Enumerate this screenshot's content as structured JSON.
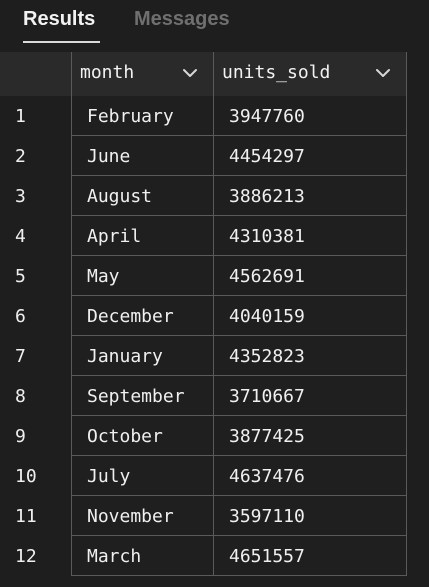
{
  "tabs": {
    "items": [
      {
        "label": "Results",
        "active": true
      },
      {
        "label": "Messages",
        "active": false
      }
    ]
  },
  "grid": {
    "columns": [
      {
        "label": "month"
      },
      {
        "label": "units_sold"
      }
    ],
    "rows": [
      {
        "row_number": "1",
        "month": "February",
        "units_sold": "3947760"
      },
      {
        "row_number": "2",
        "month": "June",
        "units_sold": "4454297"
      },
      {
        "row_number": "3",
        "month": "August",
        "units_sold": "3886213"
      },
      {
        "row_number": "4",
        "month": "April",
        "units_sold": "4310381"
      },
      {
        "row_number": "5",
        "month": "May",
        "units_sold": "4562691"
      },
      {
        "row_number": "6",
        "month": "December",
        "units_sold": "4040159"
      },
      {
        "row_number": "7",
        "month": "January",
        "units_sold": "4352823"
      },
      {
        "row_number": "8",
        "month": "September",
        "units_sold": "3710667"
      },
      {
        "row_number": "9",
        "month": "October",
        "units_sold": "3877425"
      },
      {
        "row_number": "10",
        "month": "July",
        "units_sold": "4637476"
      },
      {
        "row_number": "11",
        "month": "November",
        "units_sold": "3597110"
      },
      {
        "row_number": "12",
        "month": "March",
        "units_sold": "4651557"
      }
    ]
  },
  "theme": {
    "background": "#1e1e1e",
    "header_background": "#2b2b2b",
    "grid_line": "#5a5a5a",
    "text": "#f0f0f0",
    "inactive_tab": "#6f6f6f"
  },
  "icons": {
    "column_menu": "chevron-down-icon"
  }
}
